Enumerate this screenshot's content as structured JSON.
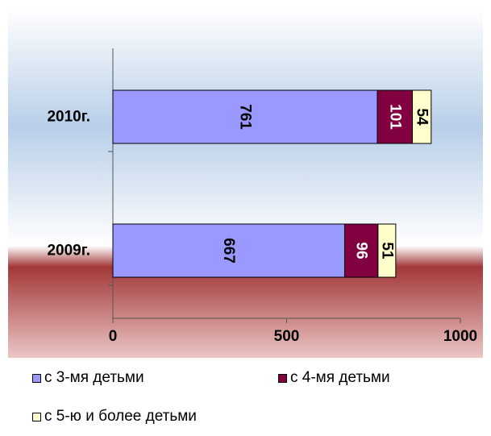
{
  "chart_data": {
    "type": "bar",
    "orientation": "horizontal",
    "stacked": true,
    "categories": [
      "2010г.",
      "2009г."
    ],
    "series": [
      {
        "name": "с 3-мя детьми",
        "values": [
          761,
          667
        ],
        "color": "#9999FF"
      },
      {
        "name": "с 4-мя детьми",
        "values": [
          101,
          96
        ],
        "color": "#800040"
      },
      {
        "name": "с 5-ю и более детьми",
        "values": [
          54,
          51
        ],
        "color": "#FFFFCC"
      }
    ],
    "data_labels": true,
    "data_label_rotation": "vertical",
    "xlim": [
      0,
      1000
    ],
    "x_ticks": [
      "0",
      "500",
      "1000"
    ],
    "grid": false,
    "legend": "bottom",
    "background": [
      "#ffffff",
      "#b9d0e8",
      "#ffffff",
      "#a13a3a",
      "#e9c3c3"
    ]
  }
}
